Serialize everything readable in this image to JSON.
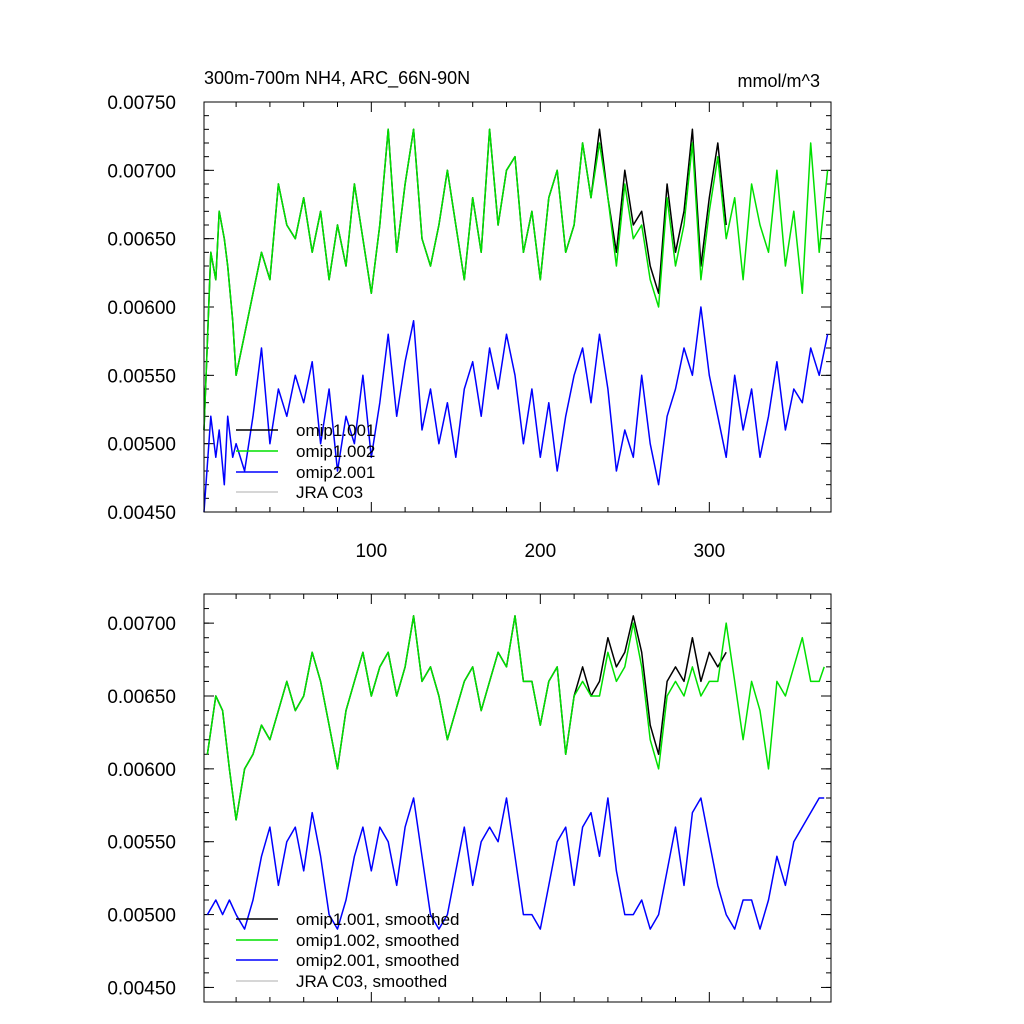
{
  "colors": {
    "omip1_001": "#000000",
    "omip1_002": "#00e000",
    "omip2_001": "#0000ff",
    "jra_c03": "#c8c8c8"
  },
  "chart_data": [
    {
      "type": "line",
      "title": "300m-700m NH4, ARC_66N-90N",
      "units": "mmol/m^3",
      "xlim": [
        1,
        372
      ],
      "ylim": [
        0.0045,
        0.0075
      ],
      "yticks": [
        0.0045,
        0.005,
        0.0055,
        0.006,
        0.0065,
        0.007,
        0.0075
      ],
      "ytick_labels": [
        "0.00450",
        "0.00500",
        "0.00550",
        "0.00600",
        "0.00650",
        "0.00700",
        "0.00750"
      ],
      "xticks": [
        100,
        200,
        300
      ],
      "xtick_labels": [
        "100",
        "200",
        "300"
      ],
      "legend": {
        "position": "bottom-left",
        "entries": [
          "omip1.001",
          "omip1.002",
          "omip2.001",
          "JRA C03"
        ]
      },
      "series": [
        {
          "name": "omip1.001",
          "color_key": "omip1_001",
          "x": [
            1,
            5,
            8,
            10,
            13,
            15,
            18,
            20,
            25,
            30,
            35,
            40,
            45,
            50,
            55,
            60,
            65,
            70,
            75,
            80,
            85,
            90,
            95,
            100,
            105,
            110,
            115,
            120,
            125,
            130,
            135,
            140,
            145,
            150,
            155,
            160,
            165,
            170,
            175,
            180,
            185,
            190,
            195,
            200,
            205,
            210,
            215,
            220,
            225,
            230,
            235,
            240,
            245,
            250,
            255,
            260,
            265,
            270,
            275,
            280,
            285,
            290,
            295,
            300,
            305,
            310
          ],
          "values": [
            0.0051,
            0.0064,
            0.0062,
            0.0067,
            0.0065,
            0.0063,
            0.0059,
            0.0055,
            0.0058,
            0.0061,
            0.0064,
            0.0062,
            0.0069,
            0.0066,
            0.0065,
            0.0068,
            0.0064,
            0.0067,
            0.0062,
            0.0066,
            0.0063,
            0.0069,
            0.0065,
            0.0061,
            0.0066,
            0.0073,
            0.0064,
            0.0069,
            0.0073,
            0.0065,
            0.0063,
            0.0066,
            0.007,
            0.0066,
            0.0062,
            0.0068,
            0.0064,
            0.0073,
            0.0066,
            0.007,
            0.0071,
            0.0064,
            0.0067,
            0.0062,
            0.0068,
            0.007,
            0.0064,
            0.0066,
            0.0072,
            0.0068,
            0.0073,
            0.0068,
            0.0064,
            0.007,
            0.0066,
            0.0067,
            0.0063,
            0.0061,
            0.0069,
            0.0064,
            0.0067,
            0.0073,
            0.0063,
            0.0068,
            0.0072,
            0.0066
          ]
        },
        {
          "name": "omip1.002",
          "color_key": "omip1_002",
          "x": [
            1,
            5,
            8,
            10,
            13,
            15,
            18,
            20,
            25,
            30,
            35,
            40,
            45,
            50,
            55,
            60,
            65,
            70,
            75,
            80,
            85,
            90,
            95,
            100,
            105,
            110,
            115,
            120,
            125,
            130,
            135,
            140,
            145,
            150,
            155,
            160,
            165,
            170,
            175,
            180,
            185,
            190,
            195,
            200,
            205,
            210,
            215,
            220,
            225,
            230,
            235,
            240,
            245,
            250,
            255,
            260,
            265,
            270,
            275,
            280,
            285,
            290,
            295,
            300,
            305,
            310,
            315,
            320,
            325,
            330,
            335,
            340,
            345,
            350,
            355,
            360,
            365,
            370
          ],
          "values": [
            0.0051,
            0.0064,
            0.0062,
            0.0067,
            0.0065,
            0.0063,
            0.0059,
            0.0055,
            0.0058,
            0.0061,
            0.0064,
            0.0062,
            0.0069,
            0.0066,
            0.0065,
            0.0068,
            0.0064,
            0.0067,
            0.0062,
            0.0066,
            0.0063,
            0.0069,
            0.0065,
            0.0061,
            0.0066,
            0.0073,
            0.0064,
            0.0069,
            0.0073,
            0.0065,
            0.0063,
            0.0066,
            0.007,
            0.0066,
            0.0062,
            0.0068,
            0.0064,
            0.0073,
            0.0066,
            0.007,
            0.0071,
            0.0064,
            0.0067,
            0.0062,
            0.0068,
            0.007,
            0.0064,
            0.0066,
            0.0072,
            0.0068,
            0.0072,
            0.0068,
            0.0063,
            0.0069,
            0.0065,
            0.0066,
            0.0062,
            0.006,
            0.0068,
            0.0063,
            0.0066,
            0.0072,
            0.0062,
            0.0067,
            0.0071,
            0.0065,
            0.0068,
            0.0062,
            0.0069,
            0.0066,
            0.0064,
            0.007,
            0.0063,
            0.0067,
            0.0061,
            0.0072,
            0.0064,
            0.007
          ]
        },
        {
          "name": "omip2.001",
          "color_key": "omip2_001",
          "x": [
            1,
            5,
            8,
            10,
            13,
            15,
            18,
            20,
            25,
            30,
            35,
            40,
            45,
            50,
            55,
            60,
            65,
            70,
            75,
            80,
            85,
            90,
            95,
            100,
            105,
            110,
            115,
            120,
            125,
            130,
            135,
            140,
            145,
            150,
            155,
            160,
            165,
            170,
            175,
            180,
            185,
            190,
            195,
            200,
            205,
            210,
            215,
            220,
            225,
            230,
            235,
            240,
            245,
            250,
            255,
            260,
            265,
            270,
            275,
            280,
            285,
            290,
            295,
            300,
            305,
            310,
            315,
            320,
            325,
            330,
            335,
            340,
            345,
            350,
            355,
            360,
            365,
            370
          ],
          "values": [
            0.0045,
            0.0052,
            0.0049,
            0.0051,
            0.0047,
            0.0052,
            0.0049,
            0.005,
            0.0048,
            0.0052,
            0.0057,
            0.005,
            0.0054,
            0.0052,
            0.0055,
            0.0053,
            0.0056,
            0.005,
            0.0054,
            0.0048,
            0.0052,
            0.005,
            0.0055,
            0.0049,
            0.0053,
            0.0058,
            0.0052,
            0.0056,
            0.0059,
            0.0051,
            0.0054,
            0.005,
            0.0053,
            0.0049,
            0.0054,
            0.0056,
            0.0052,
            0.0057,
            0.0054,
            0.0058,
            0.0055,
            0.005,
            0.0054,
            0.0049,
            0.0053,
            0.0048,
            0.0052,
            0.0055,
            0.0057,
            0.0053,
            0.0058,
            0.0054,
            0.0048,
            0.0051,
            0.0049,
            0.0055,
            0.005,
            0.0047,
            0.0052,
            0.0054,
            0.0057,
            0.0055,
            0.006,
            0.0055,
            0.0052,
            0.0049,
            0.0055,
            0.0051,
            0.0054,
            0.0049,
            0.0052,
            0.0056,
            0.0051,
            0.0054,
            0.0053,
            0.0057,
            0.0055,
            0.0058
          ]
        },
        {
          "name": "JRA C03",
          "color_key": "jra_c03",
          "x": [],
          "values": []
        }
      ]
    },
    {
      "type": "line",
      "xlim": [
        1,
        372
      ],
      "ylim": [
        0.0044,
        0.0072
      ],
      "yticks": [
        0.0045,
        0.005,
        0.0055,
        0.006,
        0.0065,
        0.007
      ],
      "ytick_labels": [
        "0.00450",
        "0.00500",
        "0.00550",
        "0.00600",
        "0.00650",
        "0.00700"
      ],
      "legend": {
        "position": "bottom-left",
        "entries": [
          "omip1.001, smoothed",
          "omip1.002, smoothed",
          "omip2.001, smoothed",
          "JRA C03, smoothed"
        ]
      },
      "series": [
        {
          "name": "omip1.001, smoothed",
          "color_key": "omip1_001",
          "x": [
            3,
            8,
            12,
            16,
            20,
            25,
            30,
            35,
            40,
            45,
            50,
            55,
            60,
            65,
            70,
            75,
            80,
            85,
            90,
            95,
            100,
            105,
            110,
            115,
            120,
            125,
            130,
            135,
            140,
            145,
            150,
            155,
            160,
            165,
            170,
            175,
            180,
            185,
            190,
            195,
            200,
            205,
            210,
            215,
            220,
            225,
            230,
            235,
            240,
            245,
            250,
            255,
            260,
            265,
            270,
            275,
            280,
            285,
            290,
            295,
            300,
            305,
            310
          ],
          "values": [
            0.0061,
            0.0065,
            0.0064,
            0.006,
            0.00565,
            0.006,
            0.0061,
            0.0063,
            0.0062,
            0.0064,
            0.0066,
            0.0064,
            0.0065,
            0.0068,
            0.0066,
            0.0063,
            0.006,
            0.0064,
            0.0066,
            0.0068,
            0.0065,
            0.0067,
            0.0068,
            0.0065,
            0.0067,
            0.00705,
            0.0066,
            0.0067,
            0.0065,
            0.0062,
            0.0064,
            0.0066,
            0.0067,
            0.0064,
            0.0066,
            0.0068,
            0.0067,
            0.00705,
            0.0066,
            0.0066,
            0.0063,
            0.0066,
            0.0067,
            0.0061,
            0.0065,
            0.0067,
            0.0065,
            0.0066,
            0.0069,
            0.0067,
            0.0068,
            0.00705,
            0.0068,
            0.0063,
            0.0061,
            0.0066,
            0.0067,
            0.0066,
            0.0069,
            0.0066,
            0.0068,
            0.0067,
            0.0068
          ]
        },
        {
          "name": "omip1.002, smoothed",
          "color_key": "omip1_002",
          "x": [
            3,
            8,
            12,
            16,
            20,
            25,
            30,
            35,
            40,
            45,
            50,
            55,
            60,
            65,
            70,
            75,
            80,
            85,
            90,
            95,
            100,
            105,
            110,
            115,
            120,
            125,
            130,
            135,
            140,
            145,
            150,
            155,
            160,
            165,
            170,
            175,
            180,
            185,
            190,
            195,
            200,
            205,
            210,
            215,
            220,
            225,
            230,
            235,
            240,
            245,
            250,
            255,
            260,
            265,
            270,
            275,
            280,
            285,
            290,
            295,
            300,
            305,
            310,
            315,
            320,
            325,
            330,
            335,
            340,
            345,
            350,
            355,
            360,
            365,
            368
          ],
          "values": [
            0.0061,
            0.0065,
            0.0064,
            0.006,
            0.00565,
            0.006,
            0.0061,
            0.0063,
            0.0062,
            0.0064,
            0.0066,
            0.0064,
            0.0065,
            0.0068,
            0.0066,
            0.0063,
            0.006,
            0.0064,
            0.0066,
            0.0068,
            0.0065,
            0.0067,
            0.0068,
            0.0065,
            0.0067,
            0.00705,
            0.0066,
            0.0067,
            0.0065,
            0.0062,
            0.0064,
            0.0066,
            0.0067,
            0.0064,
            0.0066,
            0.0068,
            0.0067,
            0.00705,
            0.0066,
            0.0066,
            0.0063,
            0.0066,
            0.0067,
            0.0061,
            0.0065,
            0.0066,
            0.0065,
            0.0065,
            0.0068,
            0.0066,
            0.0067,
            0.007,
            0.0067,
            0.0062,
            0.006,
            0.0065,
            0.0066,
            0.0065,
            0.0067,
            0.0065,
            0.0066,
            0.0066,
            0.007,
            0.0066,
            0.0062,
            0.0066,
            0.0064,
            0.006,
            0.0066,
            0.0065,
            0.0067,
            0.0069,
            0.0066,
            0.0066,
            0.0067
          ]
        },
        {
          "name": "omip2.001, smoothed",
          "color_key": "omip2_001",
          "x": [
            3,
            8,
            12,
            16,
            20,
            25,
            30,
            35,
            40,
            45,
            50,
            55,
            60,
            65,
            70,
            75,
            80,
            85,
            90,
            95,
            100,
            105,
            110,
            115,
            120,
            125,
            130,
            135,
            140,
            145,
            150,
            155,
            160,
            165,
            170,
            175,
            180,
            185,
            190,
            195,
            200,
            205,
            210,
            215,
            220,
            225,
            230,
            235,
            240,
            245,
            250,
            255,
            260,
            265,
            270,
            275,
            280,
            285,
            290,
            295,
            300,
            305,
            310,
            315,
            320,
            325,
            330,
            335,
            340,
            345,
            350,
            355,
            360,
            365,
            368
          ],
          "values": [
            0.005,
            0.0051,
            0.005,
            0.0051,
            0.005,
            0.0049,
            0.0051,
            0.0054,
            0.0056,
            0.0052,
            0.0055,
            0.0056,
            0.0053,
            0.0057,
            0.0054,
            0.005,
            0.0049,
            0.0051,
            0.0054,
            0.0056,
            0.0053,
            0.0056,
            0.0055,
            0.0052,
            0.0056,
            0.0058,
            0.0054,
            0.005,
            0.0049,
            0.005,
            0.0053,
            0.0056,
            0.0052,
            0.0055,
            0.0056,
            0.0055,
            0.0058,
            0.0054,
            0.005,
            0.005,
            0.0049,
            0.0052,
            0.0055,
            0.0056,
            0.0052,
            0.0056,
            0.0057,
            0.0054,
            0.0058,
            0.0053,
            0.005,
            0.005,
            0.0051,
            0.0049,
            0.005,
            0.0053,
            0.0056,
            0.0052,
            0.0057,
            0.0058,
            0.0055,
            0.0052,
            0.005,
            0.0049,
            0.0051,
            0.0051,
            0.0049,
            0.0051,
            0.0054,
            0.0052,
            0.0055,
            0.0056,
            0.0057,
            0.0058,
            0.0058
          ]
        },
        {
          "name": "JRA C03, smoothed",
          "color_key": "jra_c03",
          "x": [],
          "values": []
        }
      ]
    }
  ]
}
